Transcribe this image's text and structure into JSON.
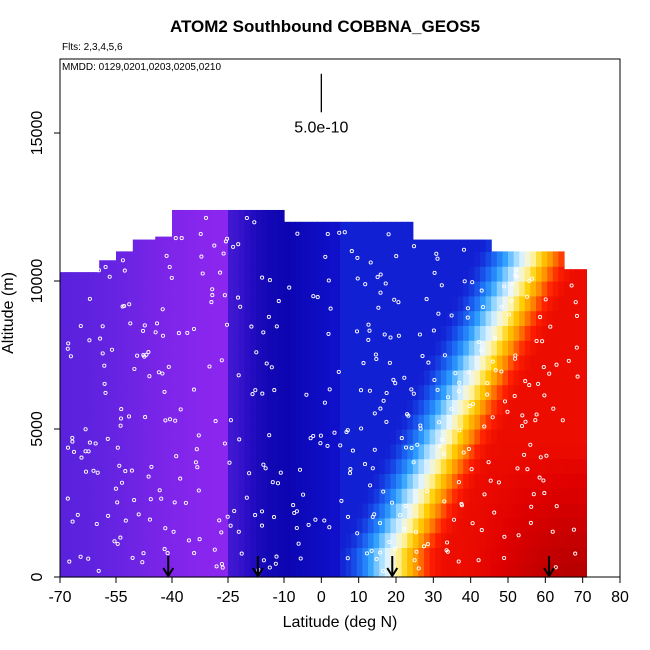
{
  "chart_data": {
    "type": "heatmap",
    "title": "ATOM2 Southbound COBBNA_GEOS5",
    "flights_label": "Flts: 2,3,4,5,6",
    "dates_label": "MMDD: 0129,0201,0203,0205,0210",
    "xlabel": "Latitude (deg N)",
    "ylabel": "Altitude (m)",
    "xlim": [
      -70,
      80
    ],
    "ylim": [
      0,
      17500
    ],
    "x_ticks": [
      -70,
      -55,
      -40,
      -25,
      -10,
      0,
      10,
      20,
      30,
      40,
      50,
      60,
      70,
      80
    ],
    "y_ticks": [
      0,
      5000,
      10000,
      15000
    ],
    "scale_marker_label": "5.0e-10",
    "arrow_latitudes": [
      -41,
      -17,
      19,
      61
    ],
    "color_scale": [
      "#8b26ee",
      "#5a22dd",
      "#2e10c8",
      "#0c05b0",
      "#1010cc",
      "#1a5ff0",
      "#2ea0ff",
      "#9ad8ff",
      "#e8f6ff",
      "#fff3a0",
      "#ffd000",
      "#ff9000",
      "#ff2000",
      "#e00000",
      "#b40000"
    ],
    "profile": {
      "latitudes": [
        -70,
        -65,
        -60,
        -55,
        -50,
        -45,
        -40,
        -35,
        -30,
        -25,
        -20,
        -15,
        -10,
        -5,
        0,
        5,
        10,
        15,
        20,
        25,
        30,
        35,
        40,
        45,
        50,
        55,
        60,
        65,
        70
      ],
      "top_altitudes_m": [
        10300,
        10300,
        10700,
        11000,
        11400,
        11500,
        12400,
        12400,
        12400,
        12400,
        12400,
        12400,
        12000,
        12000,
        12000,
        12000,
        12000,
        12000,
        12000,
        11400,
        11400,
        11400,
        11400,
        11000,
        11000,
        11000,
        11000,
        10400,
        10400
      ]
    },
    "field_description": "Ratio values increase from about 0.0 in the south to about 1.0 in northern lower troposphere",
    "grid": false
  }
}
